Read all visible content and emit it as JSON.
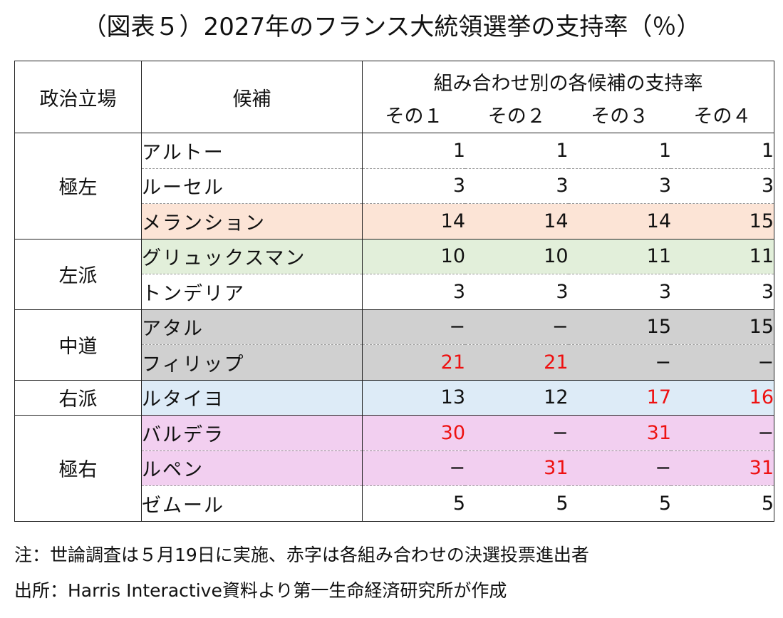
{
  "title": "（図表５）2027年のフランス大統領選挙の支持率（％）",
  "chart_data": {
    "type": "table",
    "title": "（図表５）2027年のフランス大統領選挙の支持率（％）",
    "header": {
      "position": "政治立場",
      "candidate": "候補",
      "group": "組み合わせ別の各候補の支持率",
      "combos": [
        "その１",
        "その２",
        "その３",
        "その４"
      ]
    },
    "groups": [
      {
        "position": "極左",
        "rows": [
          {
            "name": "アルトー",
            "bg": "",
            "values": [
              "1",
              "1",
              "1",
              "1"
            ],
            "red": [
              false,
              false,
              false,
              false
            ]
          },
          {
            "name": "ルーセル",
            "bg": "",
            "values": [
              "3",
              "3",
              "3",
              "3"
            ],
            "red": [
              false,
              false,
              false,
              false
            ]
          },
          {
            "name": "メランション",
            "bg": "#fce4d6",
            "values": [
              "14",
              "14",
              "14",
              "15"
            ],
            "red": [
              false,
              false,
              false,
              false
            ]
          }
        ]
      },
      {
        "position": "左派",
        "rows": [
          {
            "name": "グリュックスマン",
            "bg": "#e2efda",
            "values": [
              "10",
              "10",
              "11",
              "11"
            ],
            "red": [
              false,
              false,
              false,
              false
            ]
          },
          {
            "name": "トンデリア",
            "bg": "",
            "values": [
              "3",
              "3",
              "3",
              "3"
            ],
            "red": [
              false,
              false,
              false,
              false
            ]
          }
        ]
      },
      {
        "position": "中道",
        "rows": [
          {
            "name": "アタル",
            "bg": "#d0d0d0",
            "values": [
              "−",
              "−",
              "15",
              "15"
            ],
            "red": [
              false,
              false,
              false,
              false
            ]
          },
          {
            "name": "フィリップ",
            "bg": "#d0d0d0",
            "values": [
              "21",
              "21",
              "−",
              "−"
            ],
            "red": [
              true,
              true,
              false,
              false
            ]
          }
        ]
      },
      {
        "position": "右派",
        "rows": [
          {
            "name": "ルタイヨ",
            "bg": "#ddebf7",
            "values": [
              "13",
              "12",
              "17",
              "16"
            ],
            "red": [
              false,
              false,
              true,
              true
            ]
          }
        ]
      },
      {
        "position": "極右",
        "rows": [
          {
            "name": "バルデラ",
            "bg": "#f2cff0",
            "values": [
              "30",
              "−",
              "31",
              "−"
            ],
            "red": [
              true,
              false,
              true,
              false
            ]
          },
          {
            "name": "ルペン",
            "bg": "#f2cff0",
            "values": [
              "−",
              "31",
              "−",
              "31"
            ],
            "red": [
              false,
              true,
              false,
              true
            ]
          },
          {
            "name": "ゼムール",
            "bg": "",
            "values": [
              "5",
              "5",
              "5",
              "5"
            ],
            "red": [
              false,
              false,
              false,
              false
            ]
          }
        ]
      }
    ]
  },
  "notes": [
    "注：世論調査は５月19日に実施、赤字は各組み合わせの決選投票進出者",
    "出所：Harris Interactive資料より第一生命経済研究所が作成"
  ]
}
